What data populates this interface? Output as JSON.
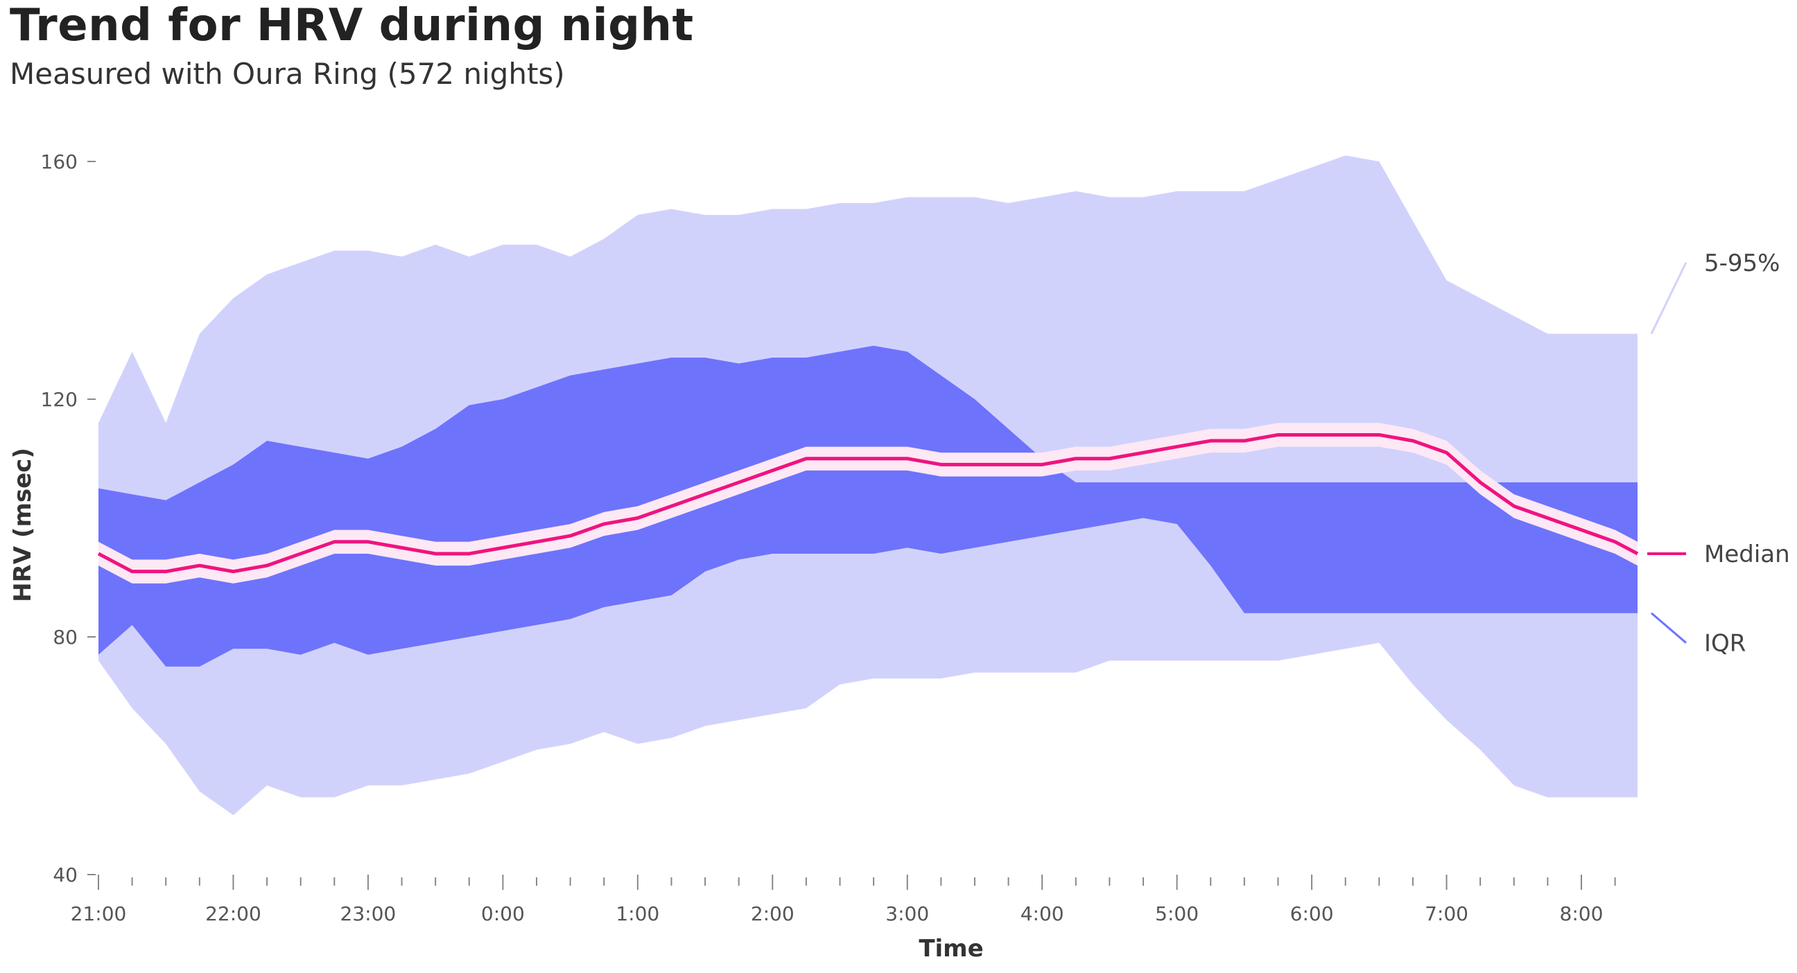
{
  "chart_data": {
    "type": "area",
    "title": "Trend for HRV during night",
    "subtitle": "Measured with Oura Ring (572 nights)",
    "xlabel": "Time",
    "ylabel": "HRV (msec)",
    "ylim": [
      40,
      160
    ],
    "yticks": [
      "40",
      "80",
      "120",
      "160"
    ],
    "xlim": [
      "21:00",
      "08:25"
    ],
    "xticks": [
      "21:00",
      "22:00",
      "23:00",
      "0:00",
      "1:00",
      "2:00",
      "3:00",
      "4:00",
      "5:00",
      "6:00",
      "7:00",
      "8:00"
    ],
    "grid": false,
    "legend": "right",
    "colors": {
      "p5_95": "#d1d2fc",
      "iqr": "#6e73fc",
      "ci": "#fde8f5",
      "median": "#f0137f"
    },
    "x": [
      "21:00",
      "21:15",
      "21:30",
      "21:45",
      "22:00",
      "22:15",
      "22:30",
      "22:45",
      "23:00",
      "23:15",
      "23:30",
      "23:45",
      "0:00",
      "0:15",
      "0:30",
      "0:45",
      "1:00",
      "1:15",
      "1:30",
      "1:45",
      "2:00",
      "2:15",
      "2:30",
      "2:45",
      "3:00",
      "3:15",
      "3:30",
      "3:45",
      "4:00",
      "4:15",
      "4:30",
      "4:45",
      "5:00",
      "5:15",
      "5:30",
      "5:45",
      "6:00",
      "6:15",
      "6:30",
      "6:45",
      "7:00",
      "7:15",
      "7:30",
      "7:45",
      "8:00",
      "8:15",
      "8:25"
    ],
    "series": [
      {
        "name": "5-95%",
        "kind": "band",
        "lower": [
          76,
          68,
          62,
          54,
          50,
          55,
          53,
          53,
          55,
          55,
          56,
          57,
          59,
          61,
          62,
          64,
          62,
          63,
          65,
          66,
          67,
          68,
          72,
          73,
          73,
          73,
          74,
          74,
          74,
          74,
          76,
          76,
          76,
          76,
          76,
          76,
          77,
          78,
          79,
          72,
          66,
          61,
          55,
          53,
          53,
          53,
          53
        ],
        "upper": [
          116,
          128,
          116,
          131,
          137,
          141,
          143,
          145,
          145,
          144,
          146,
          144,
          146,
          146,
          144,
          147,
          151,
          152,
          151,
          151,
          152,
          152,
          153,
          153,
          154,
          154,
          154,
          153,
          154,
          155,
          154,
          154,
          155,
          155,
          155,
          157,
          159,
          161,
          160,
          150,
          140,
          137,
          134,
          131,
          131,
          131,
          131
        ]
      },
      {
        "name": "IQR",
        "kind": "band",
        "lower": [
          77,
          82,
          75,
          75,
          78,
          78,
          77,
          79,
          77,
          78,
          79,
          80,
          81,
          82,
          83,
          85,
          86,
          87,
          91,
          93,
          94,
          94,
          94,
          94,
          95,
          94,
          95,
          96,
          97,
          98,
          99,
          100,
          99,
          92,
          84,
          84,
          84,
          84,
          84,
          84,
          84,
          84,
          84,
          84,
          84,
          84,
          84
        ],
        "upper": [
          105,
          104,
          103,
          106,
          109,
          113,
          112,
          111,
          110,
          112,
          115,
          119,
          120,
          122,
          124,
          125,
          126,
          127,
          127,
          126,
          127,
          127,
          128,
          129,
          128,
          124,
          120,
          115,
          110,
          106,
          106,
          106,
          106,
          106,
          106,
          106,
          106,
          106,
          106,
          106,
          106,
          106,
          106,
          106,
          106,
          106,
          106
        ]
      },
      {
        "name": "Median",
        "values": [
          94,
          91,
          91,
          92,
          91,
          92,
          94,
          96,
          96,
          95,
          94,
          94,
          95,
          96,
          97,
          99,
          100,
          102,
          104,
          106,
          108,
          110,
          110,
          110,
          110,
          109,
          109,
          109,
          109,
          110,
          110,
          111,
          112,
          113,
          113,
          114,
          114,
          114,
          114,
          113,
          111,
          106,
          102,
          100,
          98,
          96,
          94
        ]
      }
    ],
    "legend_labels": [
      "5-95%",
      "Median",
      "IQR"
    ]
  }
}
